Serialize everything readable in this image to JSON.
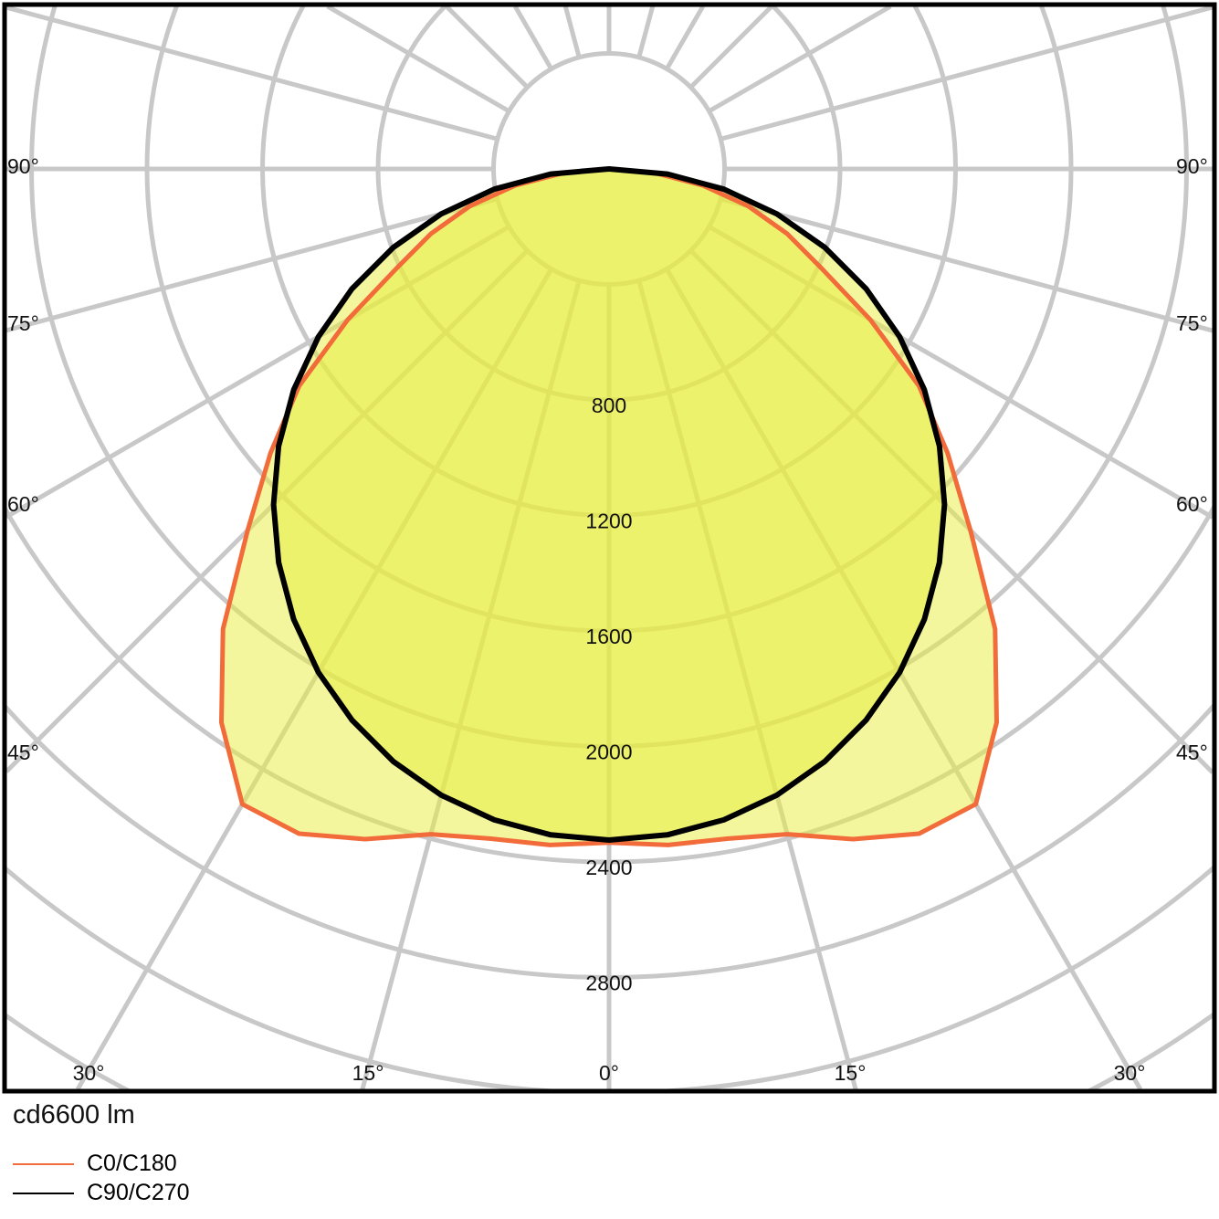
{
  "chart_data": {
    "type": "polar",
    "title": "",
    "unit_label": "cd6600 lm",
    "radial_ticks": [
      800,
      1200,
      1600,
      2000,
      2400,
      2800
    ],
    "radial_grid_step": 400,
    "radial_max_visible": 3200,
    "angle_ticks_bottom": [
      "30°",
      "15°",
      "0°",
      "15°",
      "30°"
    ],
    "angle_ticks_side": [
      "90°",
      "75°",
      "60°",
      "45°"
    ],
    "angle_grid_step_deg": 15,
    "grid": true,
    "legend_placement": "bottom-left",
    "angles_deg": [
      0,
      5,
      10,
      15,
      20,
      25,
      30,
      35,
      40,
      45,
      50,
      55,
      60,
      65,
      70,
      75,
      80,
      85,
      90
    ],
    "series": [
      {
        "name": "C0/C180",
        "color": "#f26b3a",
        "values": [
          2333,
          2350,
          2355,
          2385,
          2470,
          2540,
          2540,
          2340,
          2080,
          1770,
          1530,
          1310,
          1045,
          810,
          657,
          500,
          330,
          160,
          0
        ]
      },
      {
        "name": "C90/C270",
        "color": "#000000",
        "values": [
          2324,
          2315,
          2289,
          2245,
          2184,
          2106,
          2013,
          1904,
          1780,
          1643,
          1494,
          1333,
          1162,
          982,
          795,
          602,
          404,
          203,
          0
        ]
      }
    ],
    "colors": {
      "grid": "#c8c8c8",
      "fill": "#e8ee3c",
      "frame": "#000000"
    }
  }
}
